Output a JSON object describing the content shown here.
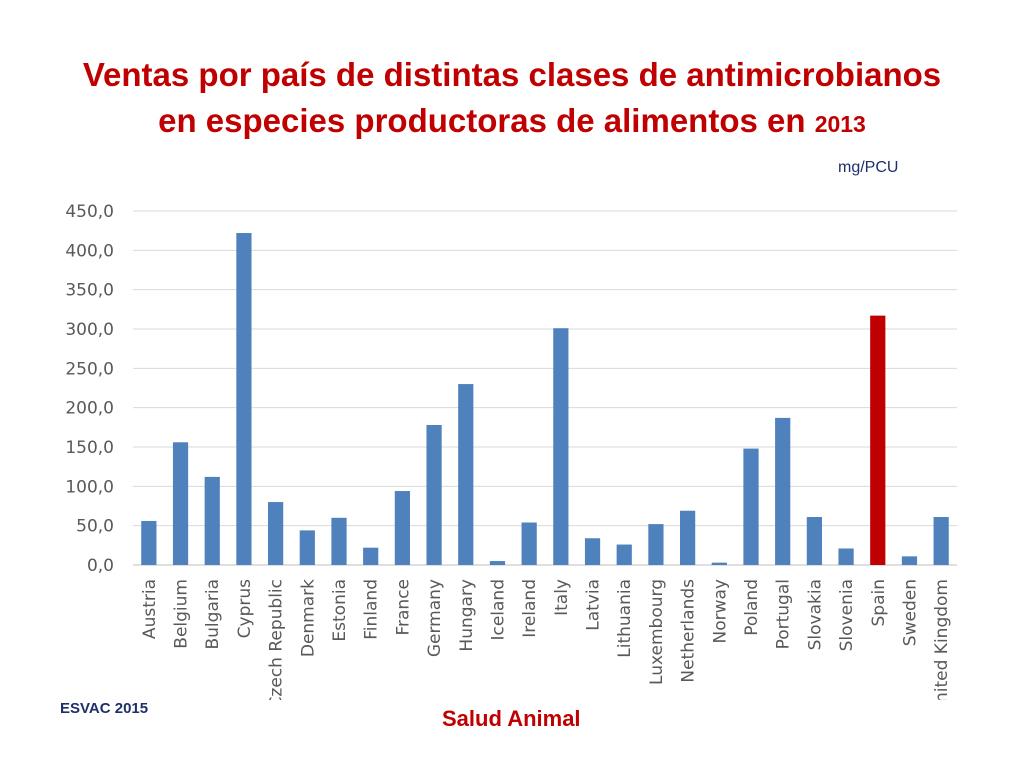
{
  "title": {
    "main": "Ventas por país de distintas clases de antimicrobianos",
    "line2": "en especies productoras de alimentos en ",
    "year": "2013"
  },
  "unit_label": "mg/PCU",
  "source": "ESVAC 2015",
  "footer": "Salud Animal",
  "colors": {
    "title": "#c00000",
    "bar": "#4f81bd",
    "highlight": "#c00000",
    "grid": "#d9d9d9",
    "text": "#595959"
  },
  "chart_data": {
    "type": "bar",
    "title": "Ventas por país de distintas clases de antimicrobianos en especies productoras de alimentos en 2013",
    "xlabel": "",
    "ylabel": "mg/PCU",
    "ylim": [
      0,
      450
    ],
    "yticks": [
      "0,0",
      "50,0",
      "100,0",
      "150,0",
      "200,0",
      "250,0",
      "300,0",
      "350,0",
      "400,0",
      "450,0"
    ],
    "grid": true,
    "legend": "none",
    "highlight_category": "Spain",
    "categories": [
      "Austria",
      "Belgium",
      "Bulgaria",
      "Cyprus",
      "Czech Republic",
      "Denmark",
      "Estonia",
      "Finland",
      "France",
      "Germany",
      "Hungary",
      "Iceland",
      "Ireland",
      "Italy",
      "Latvia",
      "Lithuania",
      "Luxembourg",
      "Netherlands",
      "Norway",
      "Poland",
      "Portugal",
      "Slovakia",
      "Slovenia",
      "Spain",
      "Sweden",
      "United Kingdom"
    ],
    "values": [
      56,
      156,
      112,
      422,
      80,
      44,
      60,
      22,
      94,
      178,
      230,
      5,
      54,
      301,
      34,
      26,
      52,
      69,
      3,
      148,
      187,
      61,
      21,
      317,
      11,
      61
    ]
  }
}
